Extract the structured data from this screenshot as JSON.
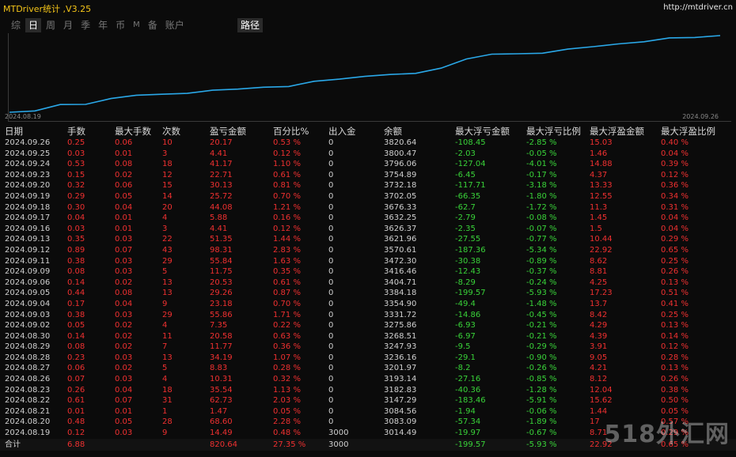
{
  "app": {
    "title": "MTDriver统计 ,V3.25",
    "url": "http://mtdriver.cn"
  },
  "tabs": [
    {
      "label": "综",
      "active": false
    },
    {
      "label": "日",
      "active": true
    },
    {
      "label": "周",
      "active": false
    },
    {
      "label": "月",
      "active": false
    },
    {
      "label": "季",
      "active": false
    },
    {
      "label": "年",
      "active": false
    },
    {
      "label": "币",
      "active": false
    },
    {
      "label": "M",
      "active": false
    },
    {
      "label": "备",
      "active": false
    },
    {
      "label": "账户",
      "active": false
    }
  ],
  "path_tab": "路径",
  "chart": {
    "start_date": "2024.08.19",
    "end_date": "2024.09.26",
    "line_color": "#2aa8e8"
  },
  "table": {
    "columns": [
      "日期",
      "手数",
      "最大手数",
      "次数",
      "盈亏金额",
      "百分比%",
      "出入金",
      "余额",
      "最大浮亏金额",
      "最大浮亏比例",
      "最大浮盈金额",
      "最大浮盈比例"
    ],
    "rows": [
      [
        "2024.09.26",
        "0.25",
        "0.06",
        "10",
        "20.17",
        "0.53 %",
        "0",
        "3820.64",
        "-108.45",
        "-2.85 %",
        "15.03",
        "0.40 %"
      ],
      [
        "2024.09.25",
        "0.03",
        "0.01",
        "3",
        "4.41",
        "0.12 %",
        "0",
        "3800.47",
        "-2.03",
        "-0.05 %",
        "1.46",
        "0.04 %"
      ],
      [
        "2024.09.24",
        "0.53",
        "0.08",
        "18",
        "41.17",
        "1.10 %",
        "0",
        "3796.06",
        "-127.04",
        "-4.01 %",
        "14.88",
        "0.39 %"
      ],
      [
        "2024.09.23",
        "0.15",
        "0.02",
        "12",
        "22.71",
        "0.61 %",
        "0",
        "3754.89",
        "-6.45",
        "-0.17 %",
        "4.37",
        "0.12 %"
      ],
      [
        "2024.09.20",
        "0.32",
        "0.06",
        "15",
        "30.13",
        "0.81 %",
        "0",
        "3732.18",
        "-117.71",
        "-3.18 %",
        "13.33",
        "0.36 %"
      ],
      [
        "2024.09.19",
        "0.29",
        "0.05",
        "14",
        "25.72",
        "0.70 %",
        "0",
        "3702.05",
        "-66.35",
        "-1.80 %",
        "12.55",
        "0.34 %"
      ],
      [
        "2024.09.18",
        "0.30",
        "0.04",
        "20",
        "44.08",
        "1.21 %",
        "0",
        "3676.33",
        "-62.7",
        "-1.72 %",
        "11.3",
        "0.31 %"
      ],
      [
        "2024.09.17",
        "0.04",
        "0.01",
        "4",
        "5.88",
        "0.16 %",
        "0",
        "3632.25",
        "-2.79",
        "-0.08 %",
        "1.45",
        "0.04 %"
      ],
      [
        "2024.09.16",
        "0.03",
        "0.01",
        "3",
        "4.41",
        "0.12 %",
        "0",
        "3626.37",
        "-2.35",
        "-0.07 %",
        "1.5",
        "0.04 %"
      ],
      [
        "2024.09.13",
        "0.35",
        "0.03",
        "22",
        "51.35",
        "1.44 %",
        "0",
        "3621.96",
        "-27.55",
        "-0.77 %",
        "10.44",
        "0.29 %"
      ],
      [
        "2024.09.12",
        "0.89",
        "0.07",
        "43",
        "98.31",
        "2.83 %",
        "0",
        "3570.61",
        "-187.36",
        "-5.34 %",
        "22.92",
        "0.65 %"
      ],
      [
        "2024.09.11",
        "0.38",
        "0.03",
        "29",
        "55.84",
        "1.63 %",
        "0",
        "3472.30",
        "-30.38",
        "-0.89 %",
        "8.62",
        "0.25 %"
      ],
      [
        "2024.09.09",
        "0.08",
        "0.03",
        "5",
        "11.75",
        "0.35 %",
        "0",
        "3416.46",
        "-12.43",
        "-0.37 %",
        "8.81",
        "0.26 %"
      ],
      [
        "2024.09.06",
        "0.14",
        "0.02",
        "13",
        "20.53",
        "0.61 %",
        "0",
        "3404.71",
        "-8.29",
        "-0.24 %",
        "4.25",
        "0.13 %"
      ],
      [
        "2024.09.05",
        "0.44",
        "0.08",
        "13",
        "29.26",
        "0.87 %",
        "0",
        "3384.18",
        "-199.57",
        "-5.93 %",
        "17.23",
        "0.51 %"
      ],
      [
        "2024.09.04",
        "0.17",
        "0.04",
        "9",
        "23.18",
        "0.70 %",
        "0",
        "3354.90",
        "-49.4",
        "-1.48 %",
        "13.7",
        "0.41 %"
      ],
      [
        "2024.09.03",
        "0.38",
        "0.03",
        "29",
        "55.86",
        "1.71 %",
        "0",
        "3331.72",
        "-14.86",
        "-0.45 %",
        "8.42",
        "0.25 %"
      ],
      [
        "2024.09.02",
        "0.05",
        "0.02",
        "4",
        "7.35",
        "0.22 %",
        "0",
        "3275.86",
        "-6.93",
        "-0.21 %",
        "4.29",
        "0.13 %"
      ],
      [
        "2024.08.30",
        "0.14",
        "0.02",
        "11",
        "20.58",
        "0.63 %",
        "0",
        "3268.51",
        "-6.97",
        "-0.21 %",
        "4.39",
        "0.14 %"
      ],
      [
        "2024.08.29",
        "0.08",
        "0.02",
        "7",
        "11.77",
        "0.36 %",
        "0",
        "3247.93",
        "-9.5",
        "-0.29 %",
        "3.91",
        "0.12 %"
      ],
      [
        "2024.08.28",
        "0.23",
        "0.03",
        "13",
        "34.19",
        "1.07 %",
        "0",
        "3236.16",
        "-29.1",
        "-0.90 %",
        "9.05",
        "0.28 %"
      ],
      [
        "2024.08.27",
        "0.06",
        "0.02",
        "5",
        "8.83",
        "0.28 %",
        "0",
        "3201.97",
        "-8.2",
        "-0.26 %",
        "4.21",
        "0.13 %"
      ],
      [
        "2024.08.26",
        "0.07",
        "0.03",
        "4",
        "10.31",
        "0.32 %",
        "0",
        "3193.14",
        "-27.16",
        "-0.85 %",
        "8.12",
        "0.26 %"
      ],
      [
        "2024.08.23",
        "0.26",
        "0.04",
        "18",
        "35.54",
        "1.13 %",
        "0",
        "3182.83",
        "-40.36",
        "-1.28 %",
        "12.04",
        "0.38 %"
      ],
      [
        "2024.08.22",
        "0.61",
        "0.07",
        "31",
        "62.73",
        "2.03 %",
        "0",
        "3147.29",
        "-183.46",
        "-5.91 %",
        "15.62",
        "0.50 %"
      ],
      [
        "2024.08.21",
        "0.01",
        "0.01",
        "1",
        "1.47",
        "0.05 %",
        "0",
        "3084.56",
        "-1.94",
        "-0.06 %",
        "1.44",
        "0.05 %"
      ],
      [
        "2024.08.20",
        "0.48",
        "0.05",
        "28",
        "68.60",
        "2.28 %",
        "0",
        "3083.09",
        "-57.34",
        "-1.89 %",
        "17",
        "0.57 %"
      ],
      [
        "2024.08.19",
        "0.12",
        "0.03",
        "9",
        "14.49",
        "0.48 %",
        "3000",
        "3014.49",
        "-19.97",
        "-0.67 %",
        "8.71",
        "0.29 %"
      ]
    ],
    "total": [
      "合计",
      "6.88",
      "",
      "",
      "820.64",
      "27.35 %",
      "3000",
      "",
      "-199.57",
      "-5.93 %",
      "22.92",
      "0.65 %"
    ]
  },
  "watermark": "518外汇网"
}
